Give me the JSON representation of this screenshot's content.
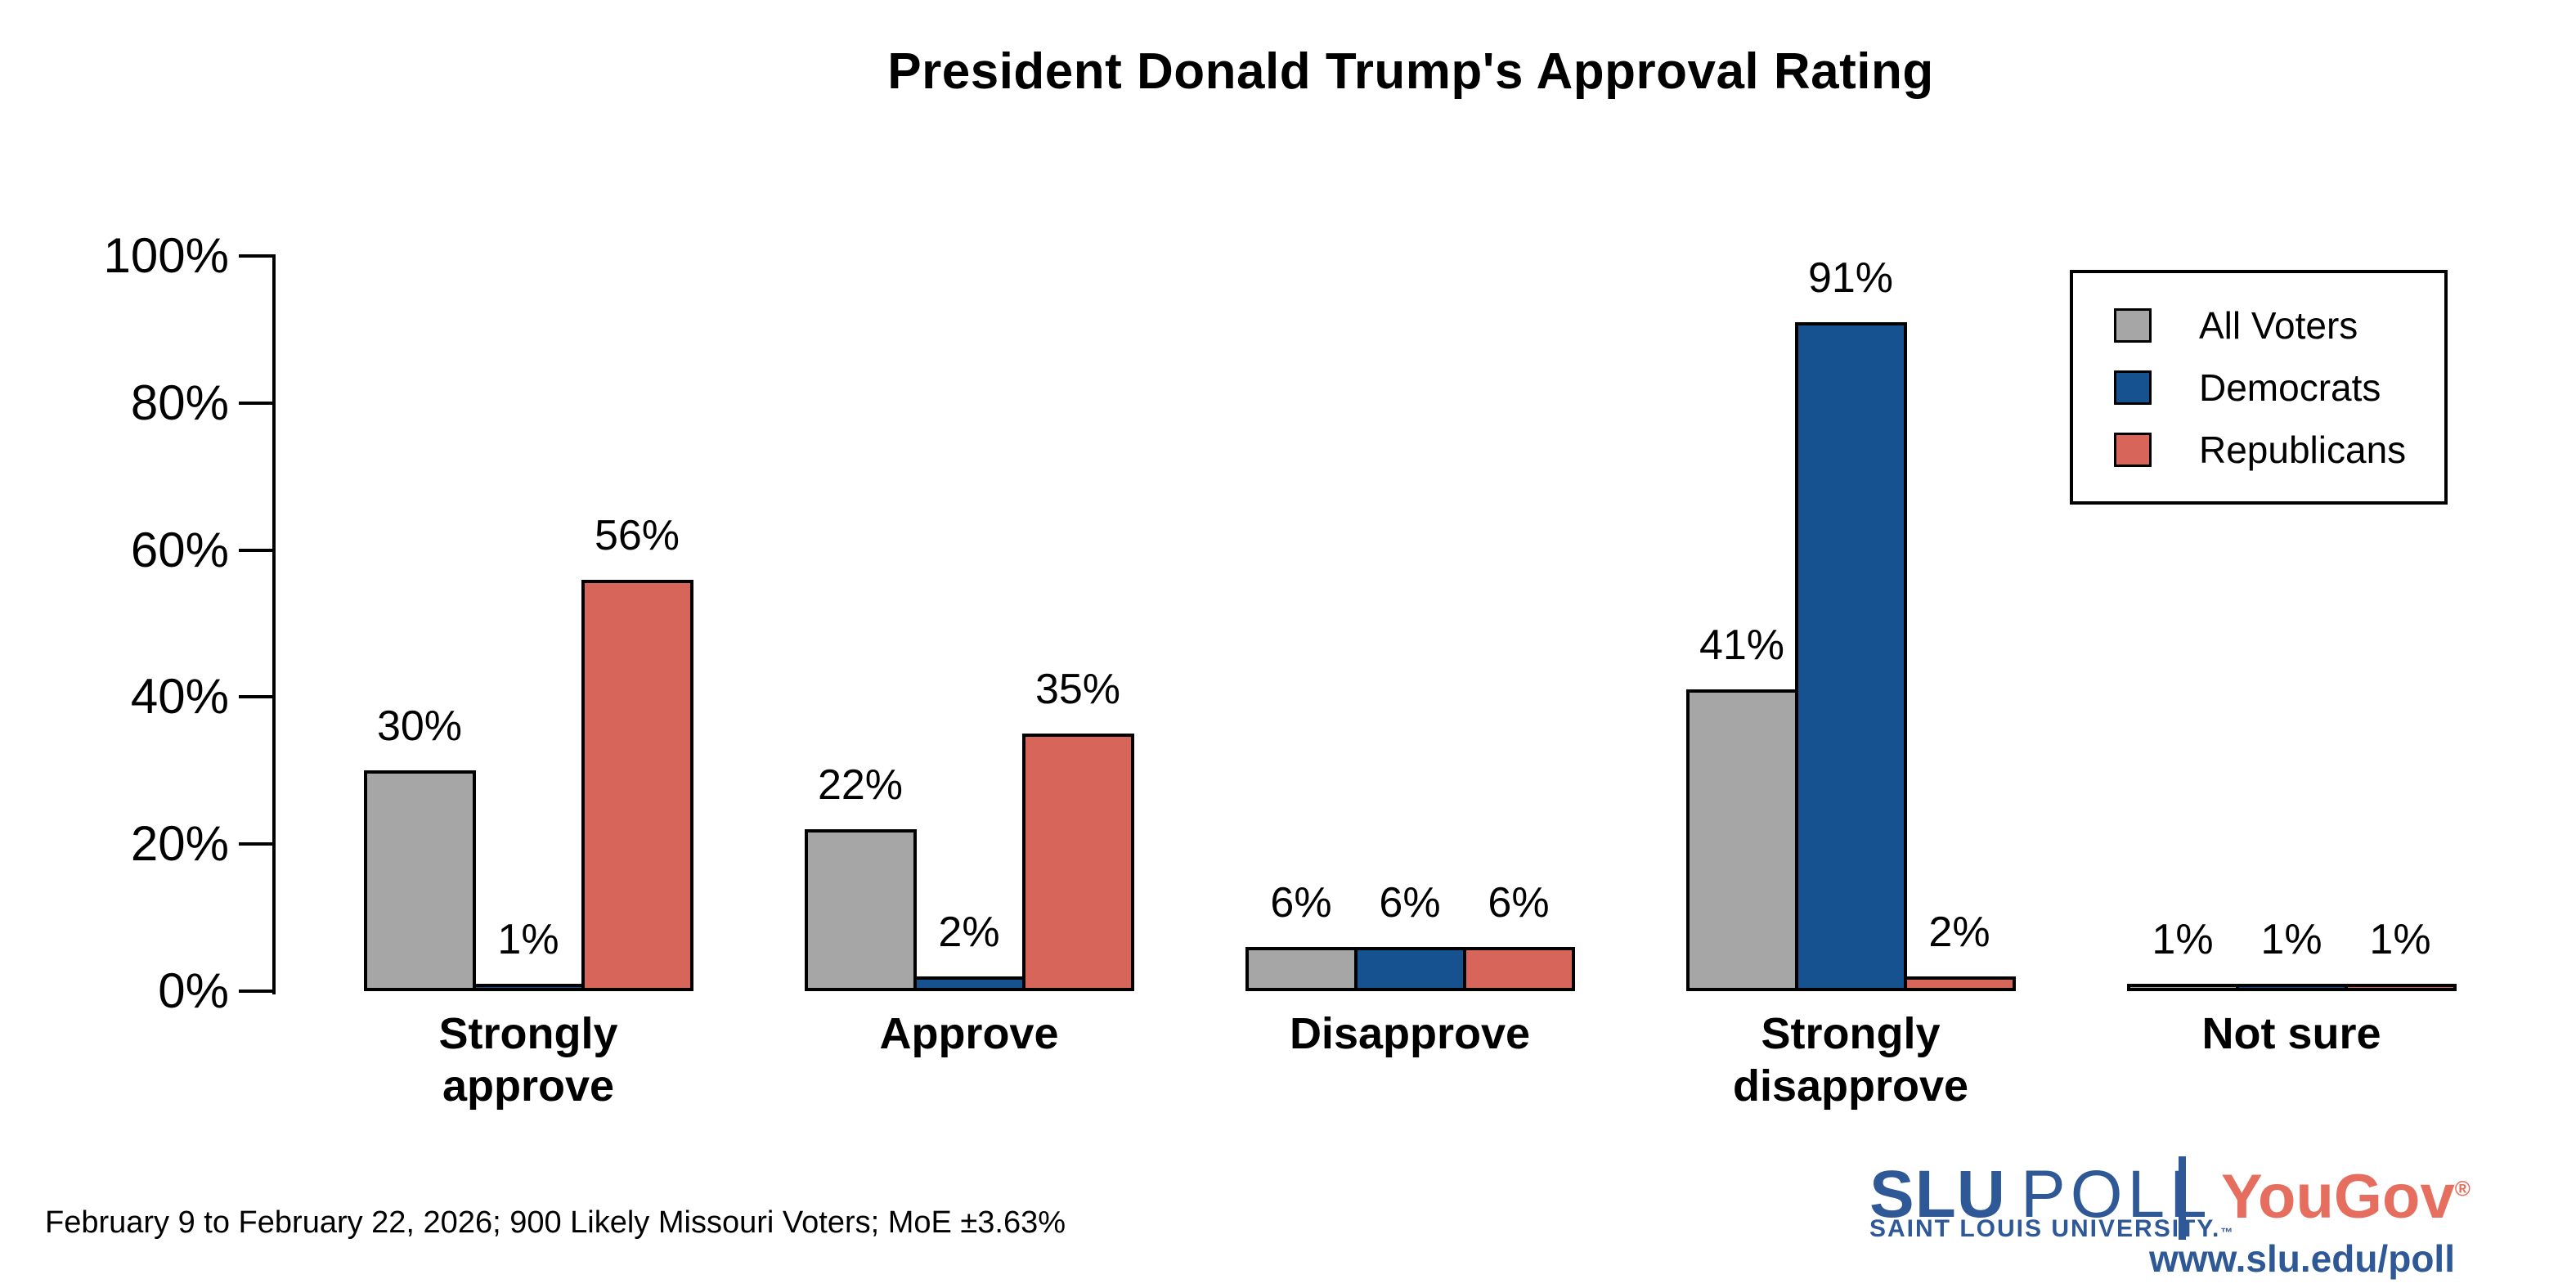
{
  "title": "President Donald Trump's Approval Rating",
  "y_axis": {
    "ticks": [
      "0%",
      "20%",
      "40%",
      "60%",
      "80%",
      "100%"
    ]
  },
  "legend": {
    "items": [
      {
        "label": "All Voters",
        "color": "#A6A6A6"
      },
      {
        "label": "Democrats",
        "color": "#15528F"
      },
      {
        "label": "Republicans",
        "color": "#D8655A"
      }
    ]
  },
  "chart_data": {
    "type": "bar",
    "title": "President Donald Trump's Approval Rating",
    "categories": [
      "Strongly approve",
      "Approve",
      "Disapprove",
      "Strongly disapprove",
      "Not sure"
    ],
    "category_display": [
      "Strongly\napprove",
      "Approve",
      "Disapprove",
      "Strongly\ndisapprove",
      "Not sure"
    ],
    "series": [
      {
        "name": "All Voters",
        "color": "#A6A6A6",
        "values": [
          30,
          22,
          6,
          41,
          1
        ]
      },
      {
        "name": "Democrats",
        "color": "#15528F",
        "values": [
          1,
          2,
          6,
          91,
          1
        ]
      },
      {
        "name": "Republicans",
        "color": "#D8655A",
        "values": [
          56,
          35,
          6,
          2,
          1
        ]
      }
    ],
    "value_suffix": "%",
    "xlabel": "",
    "ylabel": "",
    "ylim": [
      0,
      100
    ],
    "ytick_values": [
      0,
      20,
      40,
      60,
      80,
      100
    ],
    "grid": false,
    "legend_position": "top-right",
    "bar_outline_color": "#000000"
  },
  "footer": {
    "note": "February 9 to February 22, 2026; 900 Likely Missouri Voters; MoE ±3.63%"
  },
  "branding": {
    "slu": "SLU",
    "poll": "POLL",
    "university": "SAINT LOUIS UNIVERSITY.",
    "trademark": "™",
    "yougov": "YouGov",
    "registered": "®",
    "url": "www.slu.edu/poll",
    "slu_blue": "#2E5896",
    "yougov_red": "#E66E5E"
  }
}
